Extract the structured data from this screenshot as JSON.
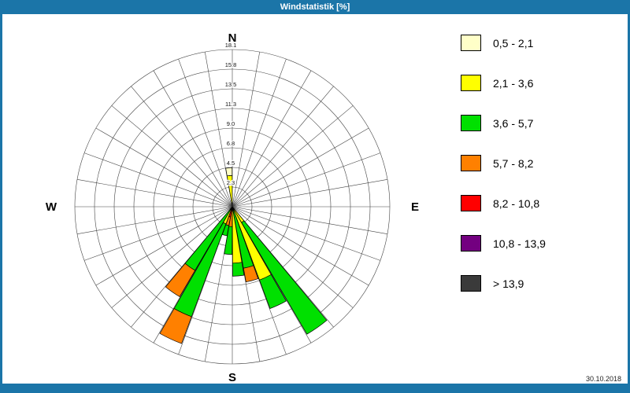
{
  "window": {
    "title": "Windstatistik [%]",
    "date": "30.10.2018"
  },
  "colors": {
    "frame": "#1b75a8",
    "background": "#ffffff",
    "grid": "#444444"
  },
  "legend": {
    "items": [
      {
        "label": "0,5 - 2,1",
        "color": "#ffffc8"
      },
      {
        "label": "2,1 - 3,6",
        "color": "#ffff00"
      },
      {
        "label": "3,6 - 5,7",
        "color": "#00e000"
      },
      {
        "label": "5,7 - 8,2",
        "color": "#ff8000"
      },
      {
        "label": "8,2 - 10,8",
        "color": "#ff0000"
      },
      {
        "label": "10,8 - 13,9",
        "color": "#730080"
      },
      {
        "label": "> 13,9",
        "color": "#3a3a3a"
      }
    ]
  },
  "chart_data": {
    "type": "windrose",
    "title": "Windstatistik [%]",
    "units": "%",
    "compass_labels": {
      "n": "N",
      "e": "E",
      "s": "S",
      "w": "W"
    },
    "sector_width_deg": 10,
    "rings": {
      "count": 8,
      "max_pct": 18.1,
      "step_pct": 2.2625,
      "tick_labels": [
        "2.3",
        "4.5",
        "6.8",
        "9.0",
        "11.3",
        "13.5",
        "15.8",
        "18.1"
      ]
    },
    "speed_bins": [
      {
        "label": "0,5 - 2,1",
        "color": "#ffffc8"
      },
      {
        "label": "2,1 - 3,6",
        "color": "#ffff00"
      },
      {
        "label": "3,6 - 5,7",
        "color": "#00e000"
      },
      {
        "label": "5,7 - 8,2",
        "color": "#ff8000"
      },
      {
        "label": "8,2 - 10,8",
        "color": "#ff0000"
      },
      {
        "label": "10,8 - 13,9",
        "color": "#730080"
      },
      {
        "label": "> 13,9",
        "color": "#3a3a3a"
      }
    ],
    "petals": [
      {
        "direction_deg": 355,
        "segments": [
          {
            "bin": "2,1 - 3,6",
            "from_pct": 0,
            "to_pct": 3.6
          },
          {
            "bin": "0,5 - 2,1",
            "from_pct": 3.6,
            "to_pct": 4.5
          }
        ]
      },
      {
        "direction_deg": 145,
        "segments": [
          {
            "bin": "2,1 - 3,6",
            "from_pct": 0,
            "to_pct": 2.1
          },
          {
            "bin": "3,6 - 5,7",
            "from_pct": 2.1,
            "to_pct": 17.0
          }
        ]
      },
      {
        "direction_deg": 155,
        "segments": [
          {
            "bin": "2,1 - 3,6",
            "from_pct": 0,
            "to_pct": 9.0
          },
          {
            "bin": "3,6 - 5,7",
            "from_pct": 9.0,
            "to_pct": 12.5
          }
        ]
      },
      {
        "direction_deg": 165,
        "segments": [
          {
            "bin": "3,6 - 5,7",
            "from_pct": 0,
            "to_pct": 7.2
          },
          {
            "bin": "5,7 - 8,2",
            "from_pct": 7.2,
            "to_pct": 8.8
          }
        ]
      },
      {
        "direction_deg": 175,
        "segments": [
          {
            "bin": "2,1 - 3,6",
            "from_pct": 0,
            "to_pct": 6.5
          },
          {
            "bin": "3,6 - 5,7",
            "from_pct": 6.5,
            "to_pct": 8.0
          }
        ]
      },
      {
        "direction_deg": 185,
        "segments": [
          {
            "bin": "5,7 - 8,2",
            "from_pct": 0,
            "to_pct": 2.3
          },
          {
            "bin": "3,6 - 5,7",
            "from_pct": 2.3,
            "to_pct": 5.5
          }
        ]
      },
      {
        "direction_deg": 195,
        "segments": [
          {
            "bin": "8,2 - 10,8",
            "from_pct": 0,
            "to_pct": 1.2
          },
          {
            "bin": "5,7 - 8,2",
            "from_pct": 1.2,
            "to_pct": 2.2
          },
          {
            "bin": "3,6 - 5,7",
            "from_pct": 2.2,
            "to_pct": 3.4
          }
        ]
      },
      {
        "direction_deg": 205,
        "segments": [
          {
            "bin": "2,1 - 3,6",
            "from_pct": 0,
            "to_pct": 2.1
          },
          {
            "bin": "3,6 - 5,7",
            "from_pct": 2.1,
            "to_pct": 13.5
          },
          {
            "bin": "5,7 - 8,2",
            "from_pct": 13.5,
            "to_pct": 16.8
          }
        ]
      },
      {
        "direction_deg": 215,
        "segments": [
          {
            "bin": "3,6 - 5,7",
            "from_pct": 0,
            "to_pct": 8.5
          },
          {
            "bin": "5,7 - 8,2",
            "from_pct": 8.5,
            "to_pct": 12.0
          }
        ]
      }
    ]
  }
}
